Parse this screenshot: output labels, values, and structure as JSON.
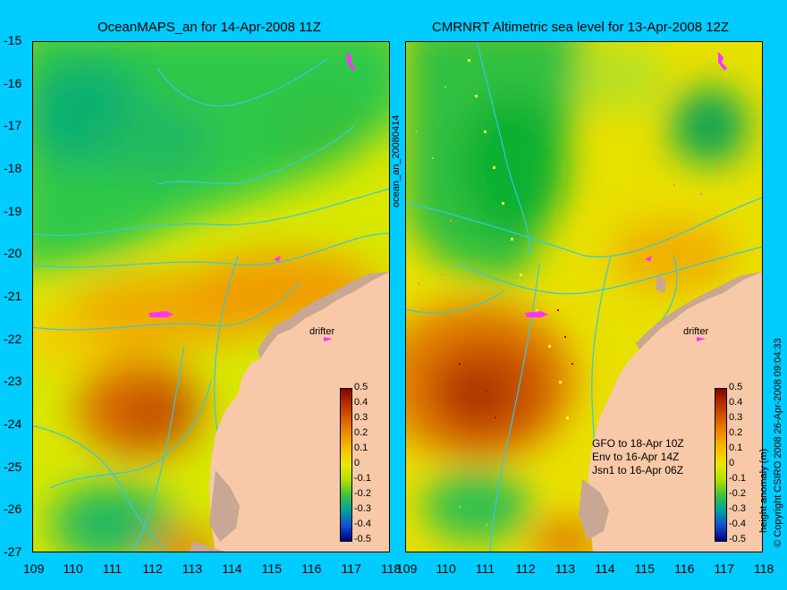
{
  "titles": {
    "left": "OceanMAPS_an for 14-Apr-2008 11Z",
    "right": "CMRNRT Altimetric sea level  for 13-Apr-2008 12Z"
  },
  "side_labels": {
    "middle": "ocean_an_20080414",
    "colorbar": "height anomaly (m)",
    "copyright": "© Copyright CSIRO 2008   26-Apr-2008 09:04:33"
  },
  "y_ticks": [
    "-15",
    "-16",
    "-17",
    "-18",
    "-19",
    "-20",
    "-21",
    "-22",
    "-23",
    "-24",
    "-25",
    "-26",
    "-27"
  ],
  "x_ticks": [
    "109",
    "110",
    "111",
    "112",
    "113",
    "114",
    "115",
    "116",
    "117",
    "118"
  ],
  "colorbar_ticks": [
    "0.5",
    "0.4",
    "0.3",
    "0.2",
    "0.1",
    "0",
    "-0.1",
    "-0.2",
    "-0.3",
    "-0.4",
    "-0.5"
  ],
  "drifter_label": "drifter",
  "notes": [
    "GFO to 18-Apr 10Z",
    "Env to 16-Apr 14Z",
    "Jsn1 to 16-Apr 06Z"
  ],
  "colors": {
    "background": "#00ccff",
    "land": "#f7c9a8",
    "land_dark": "#c8a894",
    "contour": "#35c8e0",
    "drifter_marker": "#ff33ff"
  },
  "chart_data": {
    "type": "heatmap",
    "xlim": [
      109,
      118
    ],
    "ylim": [
      -27,
      -15
    ],
    "value_range": [
      -0.5,
      0.5
    ],
    "colorbar_label": "height anomaly (m)"
  }
}
